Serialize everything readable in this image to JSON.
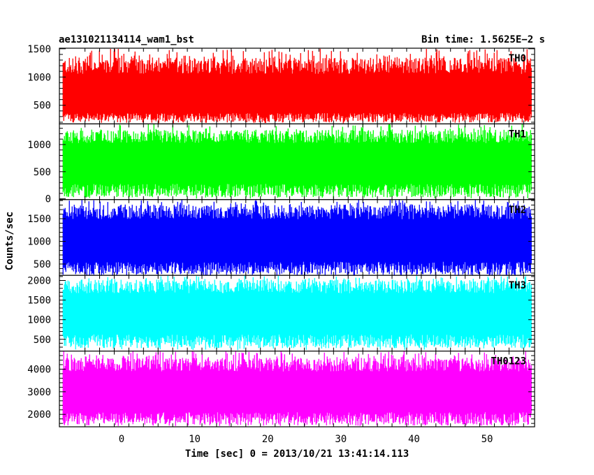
{
  "header": {
    "left_title": "ae131021134114_wam1_bst",
    "right_title": "Bin time: 1.5625E−2 s"
  },
  "chart_data": {
    "type": "line",
    "xlabel": "Time [sec] 0 = 2013/10/21 13:41:14.113",
    "ylabel": "Counts/sec",
    "xlim": [
      -8.5,
      56.5
    ],
    "xticks": [
      0,
      10,
      20,
      30,
      40,
      50
    ],
    "x_range_data": [
      -8.0,
      56.0
    ],
    "bin_time": 0.015625,
    "panels": [
      {
        "name": "TH0",
        "color": "#ff0000",
        "ylim": [
          170,
          1510
        ],
        "yticks": [
          500,
          1000,
          1500
        ],
        "base": 280,
        "top_typical": 1200,
        "top_max": 1500,
        "mean": 620
      },
      {
        "name": "TH1",
        "color": "#00ff00",
        "ylim": [
          -15,
          1380
        ],
        "yticks": [
          0,
          500,
          1000
        ],
        "base": 150,
        "top_typical": 1150,
        "top_max": 1380,
        "mean": 650
      },
      {
        "name": "TH2",
        "color": "#0000ff",
        "ylim": [
          250,
          1920
        ],
        "yticks": [
          500,
          1000,
          1500
        ],
        "base": 400,
        "top_typical": 1650,
        "top_max": 1920,
        "mean": 1000
      },
      {
        "name": "TH3",
        "color": "#00ffff",
        "ylim": [
          200,
          2130
        ],
        "yticks": [
          500,
          1000,
          1500,
          2000
        ],
        "base": 450,
        "top_typical": 1850,
        "top_max": 2120,
        "mean": 1150
      },
      {
        "name": "TH0123",
        "color": "#ff00ff",
        "ylim": [
          1450,
          4800
        ],
        "yticks": [
          2000,
          3000,
          4000
        ],
        "base": 1800,
        "top_typical": 4200,
        "top_max": 4800,
        "mean": 3000
      }
    ]
  }
}
